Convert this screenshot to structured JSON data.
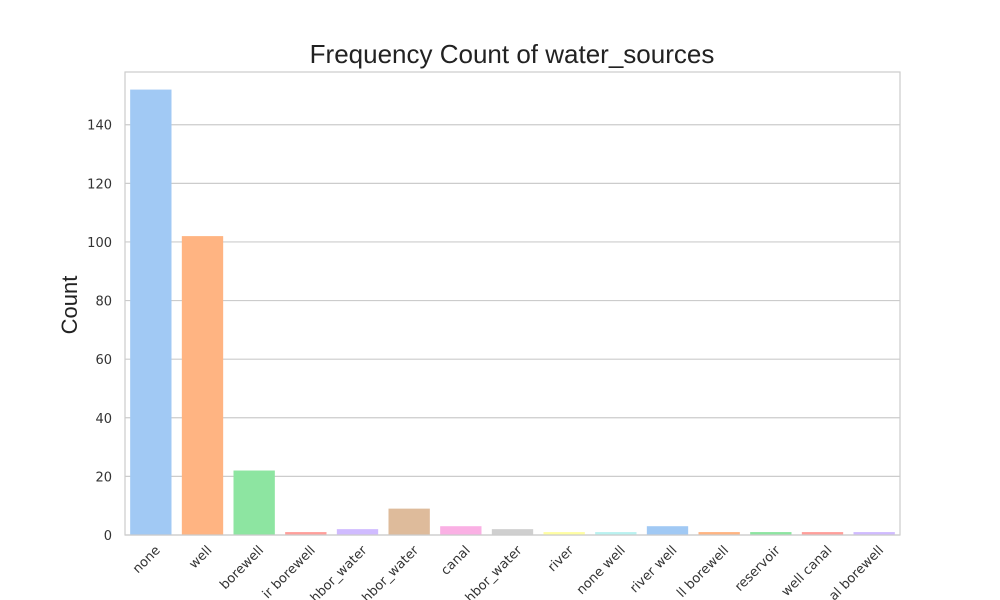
{
  "chart_data": {
    "type": "bar",
    "title": "Frequency Count of water_sources",
    "xlabel": "",
    "ylabel": "Count",
    "ylim": [
      0,
      158
    ],
    "yticks": [
      0,
      20,
      40,
      60,
      80,
      100,
      120,
      140
    ],
    "grid": "y",
    "categories": [
      "none",
      "well",
      "borewell",
      "ir borewell",
      "hbor_water",
      "hbor_water",
      "canal",
      "hbor_water",
      "river",
      "none well",
      "river well",
      "ll borewell",
      "reservoir",
      "well canal",
      "al borewell"
    ],
    "values": [
      152,
      102,
      22,
      1,
      2,
      9,
      3,
      2,
      1,
      1,
      3,
      1,
      1,
      1,
      1
    ],
    "colors": [
      "#a1c9f4",
      "#ffb482",
      "#8de5a1",
      "#ff9f9b",
      "#d0bbff",
      "#debb9b",
      "#fab0e4",
      "#cfcfcf",
      "#fffea3",
      "#b9f2f0",
      "#a1c9f4",
      "#ffb482",
      "#8de5a1",
      "#ff9f9b",
      "#d0bbff"
    ]
  }
}
